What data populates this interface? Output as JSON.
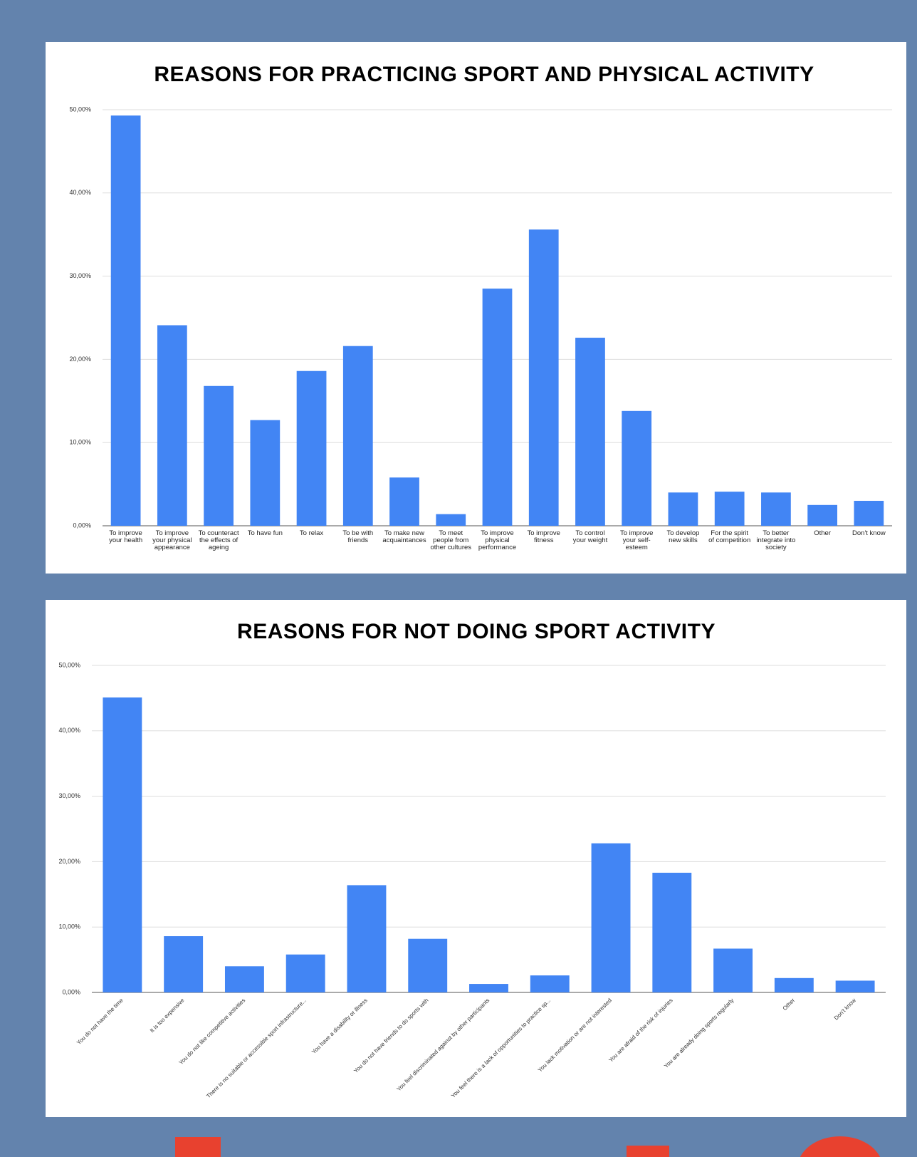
{
  "chart_data": [
    {
      "type": "bar",
      "title": "REASONS FOR PRACTICING SPORT AND PHYSICAL ACTIVITY",
      "categories": [
        "To improve your health",
        "To improve your physical appearance",
        "To counteract the effects of ageing",
        "To have fun",
        "To relax",
        "To be with friends",
        "To make new acquaintances",
        "To meet people from other cultures",
        "To improve physical performance",
        "To improve fitness",
        "To control your weight",
        "To improve your self-esteem",
        "To develop new skills",
        "For the spirit of competition",
        "To better integrate into society",
        "Other",
        "Don't know"
      ],
      "values": [
        49.3,
        24.1,
        16.8,
        12.7,
        18.6,
        21.6,
        5.8,
        1.4,
        28.5,
        35.6,
        22.6,
        13.8,
        4.0,
        4.1,
        4.0,
        2.5,
        3.0
      ],
      "color": "#4285f4",
      "ylim": [
        0,
        50
      ],
      "yticks": [
        {
          "value": 0,
          "label": "0,00%"
        },
        {
          "value": 10,
          "label": "10,00%"
        },
        {
          "value": 20,
          "label": "20,00%"
        },
        {
          "value": 30,
          "label": "30,00%"
        },
        {
          "value": 40,
          "label": "40,00%"
        },
        {
          "value": 50,
          "label": "50,00%"
        }
      ],
      "grid": true
    },
    {
      "type": "bar",
      "title": "REASONS FOR NOT DOING SPORT ACTIVITY",
      "categories": [
        "You do not have the time",
        "It is too expensive",
        "You do not like competitive activities",
        "There is no suitable or accessible sport infrastructure...",
        "You have a disability or illness",
        "You do not have friends to do sports with",
        "You feel discriminated against by other participants",
        "You feel there is a lack of opportunities to practice sp...",
        "You lack motivation or are not interested",
        "You are afraid of the risk of injuries",
        "You are already doing sports regularly",
        "Other",
        "Don't know"
      ],
      "values": [
        45.1,
        8.6,
        4.0,
        5.8,
        16.4,
        8.2,
        1.3,
        2.6,
        22.8,
        18.3,
        6.7,
        2.2,
        1.8
      ],
      "color": "#4285f4",
      "ylim": [
        0,
        50
      ],
      "yticks": [
        {
          "value": 0,
          "label": "0,00%"
        },
        {
          "value": 10,
          "label": "10,00%"
        },
        {
          "value": 20,
          "label": "20,00%"
        },
        {
          "value": 30,
          "label": "30,00%"
        },
        {
          "value": 40,
          "label": "40,00%"
        },
        {
          "value": 50,
          "label": "50,00%"
        }
      ],
      "grid": true
    }
  ]
}
